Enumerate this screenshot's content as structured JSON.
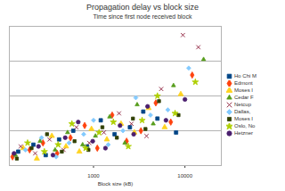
{
  "chart_data": {
    "type": "scatter",
    "title": "Propagation delay vs block size",
    "subtitle": "Time since first node received block",
    "x_label": "Block size (kB)",
    "log": "x",
    "grid": true,
    "legend": "right",
    "tick_labels": "x",
    "xlim": [
      120,
      25000
    ],
    "xticks": [
      1000,
      10000
    ],
    "ylim": [
      0,
      8
    ],
    "yticks": [
      0,
      2,
      4,
      6,
      8
    ],
    "series": [
      {
        "name": "Ho Chi M",
        "color": "#004586",
        "marker": "square",
        "x": [
          150,
          220,
          300,
          420,
          600,
          850,
          1200,
          1700,
          2500,
          3500,
          5000,
          8000
        ],
        "values": [
          0.8,
          1.2,
          0.6,
          1.5,
          2.0,
          1.1,
          2.6,
          1.8,
          2.2,
          3.1,
          2.7,
          1.9
        ]
      },
      {
        "name": "Edmont",
        "color": "#ff420e",
        "marker": "diamond",
        "x": [
          130,
          200,
          280,
          400,
          560,
          800,
          1100,
          1600,
          2300,
          3300,
          4800,
          7000,
          12000
        ],
        "values": [
          0.5,
          0.9,
          1.3,
          0.7,
          1.6,
          2.3,
          1.0,
          2.9,
          1.4,
          2.0,
          3.6,
          2.5,
          5.2
        ]
      },
      {
        "name": "Moses I",
        "color": "#ffd320",
        "marker": "triangle",
        "x": [
          170,
          240,
          350,
          500,
          700,
          950,
          1400,
          2000,
          2800,
          4000,
          6000,
          9000
        ],
        "values": [
          1.0,
          0.4,
          1.7,
          1.1,
          0.8,
          2.1,
          1.5,
          2.4,
          1.9,
          3.3,
          2.2,
          4.1
        ]
      },
      {
        "name": "Cedar F",
        "color": "#579d1c",
        "marker": "triangle2",
        "x": [
          140,
          260,
          380,
          520,
          760,
          1050,
          1500,
          2200,
          3000,
          4500,
          7500,
          16000
        ],
        "values": [
          0.6,
          1.4,
          0.9,
          1.9,
          1.2,
          1.7,
          2.8,
          1.3,
          3.5,
          2.4,
          4.6,
          6.1
        ]
      },
      {
        "name": "Netcup",
        "color": "#7e0021",
        "marker": "times",
        "x": [
          160,
          230,
          330,
          470,
          650,
          900,
          1300,
          1900,
          2600,
          3800,
          5500,
          9500,
          14000
        ],
        "values": [
          1.1,
          0.7,
          1.5,
          0.9,
          2.2,
          1.3,
          1.9,
          3.0,
          2.4,
          1.7,
          4.4,
          7.5,
          6.8
        ]
      },
      {
        "name": "Dallas,",
        "color": "#83caff",
        "marker": "diamond2",
        "x": [
          180,
          270,
          390,
          540,
          780,
          1000,
          1450,
          2100,
          2900,
          4200,
          6500,
          11000
        ],
        "values": [
          0.9,
          1.6,
          0.5,
          1.3,
          1.8,
          2.6,
          1.2,
          2.0,
          3.9,
          2.9,
          3.2,
          5.6
        ]
      },
      {
        "name": "Moses I",
        "color": "#314004",
        "marker": "square2",
        "x": [
          145,
          210,
          310,
          450,
          620,
          880,
          1250,
          1800,
          2700,
          3700,
          5200,
          8500
        ],
        "values": [
          0.4,
          1.0,
          1.8,
          0.8,
          1.4,
          0.9,
          2.2,
          1.6,
          2.7,
          2.1,
          3.7,
          2.9
        ]
      },
      {
        "name": "Oslo, No",
        "color": "#aecf00",
        "marker": "star",
        "x": [
          190,
          290,
          410,
          580,
          820,
          1150,
          1650,
          2400,
          3400,
          5000,
          7800,
          13000
        ],
        "values": [
          1.3,
          0.8,
          1.2,
          2.4,
          1.0,
          1.9,
          2.5,
          1.1,
          2.6,
          4.0,
          3.0,
          4.8
        ]
      },
      {
        "name": "Hetzner",
        "color": "#4b1f6f",
        "marker": "circle",
        "x": [
          135,
          250,
          360,
          490,
          680,
          980,
          1350,
          1950,
          2750,
          3900,
          6200,
          10000
        ],
        "values": [
          0.7,
          1.1,
          0.6,
          1.6,
          2.5,
          1.4,
          1.0,
          2.3,
          1.8,
          3.4,
          2.6,
          3.8
        ]
      }
    ]
  }
}
